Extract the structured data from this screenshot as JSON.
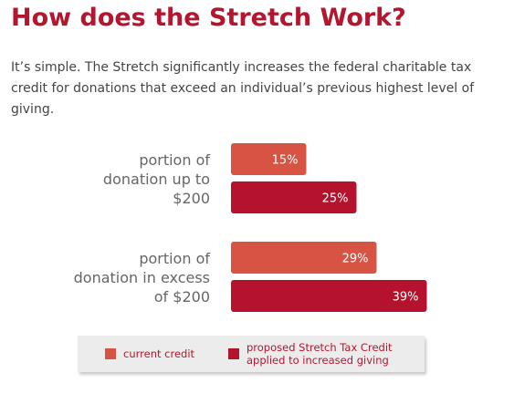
{
  "chart_data": {
    "type": "bar",
    "orientation": "horizontal",
    "title": "How does the Stretch Work?",
    "subtitle": "It’s simple. The Stretch significantly increases the federal charitable tax credit for donations that exceed an individual’s previous highest level of giving.",
    "categories": [
      "portion of donation up to $200",
      "portion of donation in excess of $200"
    ],
    "series": [
      {
        "name": "current credit",
        "color": "#d75445",
        "values": [
          15,
          29
        ],
        "value_labels": [
          "15%",
          "29%"
        ]
      },
      {
        "name": "proposed Stretch Tax Credit applied to increased giving",
        "color": "#b5122e",
        "values": [
          25,
          39
        ],
        "value_labels": [
          "25%",
          "39%"
        ]
      }
    ],
    "legend": "bottom"
  }
}
